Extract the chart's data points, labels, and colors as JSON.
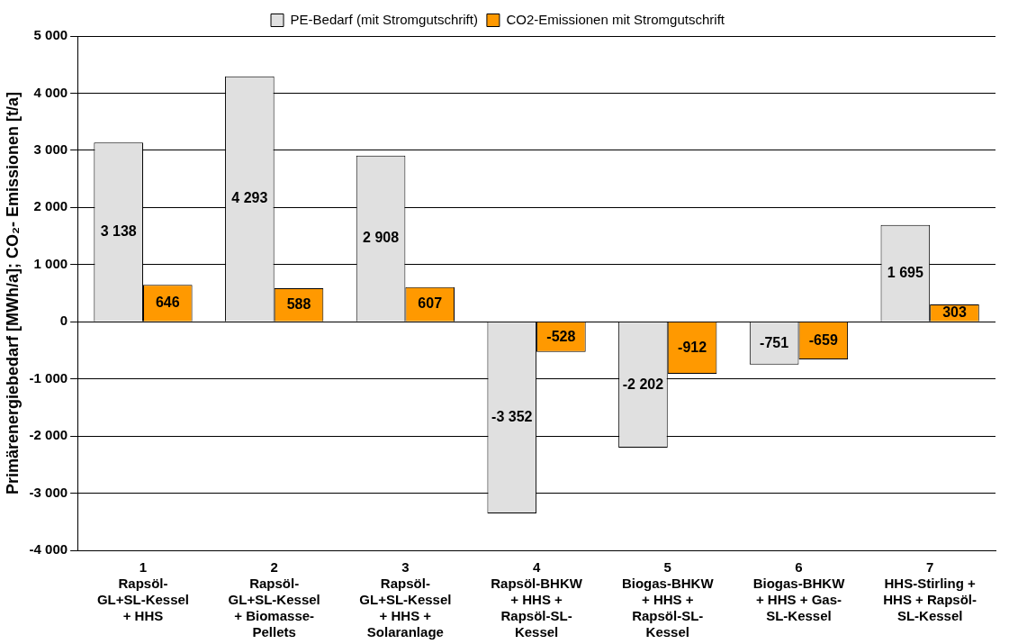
{
  "chart_data": {
    "type": "bar",
    "ylabel": "Primärenergiebedarf [MWh/a]; CO₂- Emissionen [t/a]",
    "categories": [
      "1\nRapsöl-\nGL+SL-Kessel\n+ HHS",
      "2\nRapsöl-\nGL+SL-Kessel\n+ Biomasse-\nPellets",
      "3\nRapsöl-\nGL+SL-Kessel\n+ HHS +\nSolaranlage",
      "4\nRapsöl-BHKW\n+ HHS +\nRapsöl-SL-\nKessel",
      "5\nBiogas-BHKW\n+ HHS +\nRapsöl-SL-\nKessel",
      "6\nBiogas-BHKW\n+ HHS + Gas-\nSL-Kessel",
      "7\nHHS-Stirling +\nHHS + Rapsöl-\nSL-Kessel"
    ],
    "series": [
      {
        "name": "PE-Bedarf (mit Stromgutschrift)",
        "color": "#e0e0e0",
        "values": [
          3138,
          4293,
          2908,
          -3352,
          -2202,
          -751,
          1695
        ]
      },
      {
        "name": "CO2-Emissionen mit Stromgutschrift",
        "color": "#ff9900",
        "values": [
          646,
          588,
          607,
          -528,
          -912,
          -659,
          303
        ]
      }
    ],
    "ylim": [
      -4000,
      5000
    ],
    "yticks": [
      -4000,
      -3000,
      -2000,
      -1000,
      0,
      1000,
      2000,
      3000,
      4000,
      5000
    ],
    "grid": "y",
    "legend": "top",
    "data_labels": true
  }
}
